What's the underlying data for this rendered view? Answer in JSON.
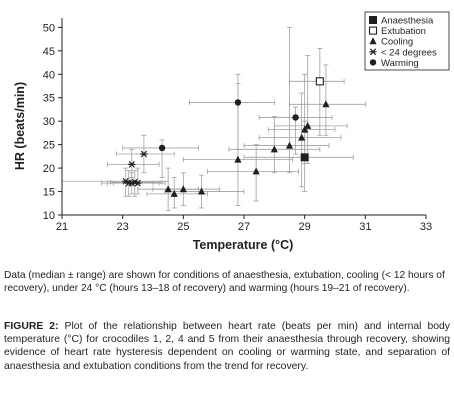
{
  "chart_data": {
    "type": "scatter",
    "xlabel": "Temperature (°C)",
    "ylabel": "HR (beats/min)",
    "xlim": [
      21,
      33
    ],
    "ylim": [
      10,
      52
    ],
    "xticks": [
      21,
      23,
      25,
      27,
      29,
      31,
      33
    ],
    "yticks": [
      10,
      15,
      20,
      25,
      30,
      35,
      40,
      45,
      50
    ],
    "grid": false,
    "legend_position": "top-right",
    "error_bars": "range",
    "series": [
      {
        "name": "Anaesthesia",
        "marker": "filled-square",
        "points": [
          {
            "x": 29.0,
            "y": 22.3,
            "xmin": 27.0,
            "xmax": 30.6,
            "ymin": 15.0,
            "ymax": 30.0
          }
        ]
      },
      {
        "name": "Extubation",
        "marker": "open-square",
        "points": [
          {
            "x": 29.5,
            "y": 38.5,
            "xmin": 28.5,
            "xmax": 30.3,
            "ymin": 27.0,
            "ymax": 45.5
          }
        ]
      },
      {
        "name": "Cooling",
        "marker": "filled-triangle",
        "points": [
          {
            "x": 24.5,
            "y": 15.5,
            "xmin": 23.5,
            "xmax": 25.5,
            "ymin": 11.0,
            "ymax": 20.0
          },
          {
            "x": 24.7,
            "y": 14.5,
            "xmin": 23.8,
            "xmax": 25.8,
            "ymin": 11.5,
            "ymax": 18.0
          },
          {
            "x": 25.0,
            "y": 15.5,
            "xmin": 24.0,
            "xmax": 26.2,
            "ymin": 12.0,
            "ymax": 19.0
          },
          {
            "x": 25.6,
            "y": 15.0,
            "xmin": 24.4,
            "xmax": 27.0,
            "ymin": 11.5,
            "ymax": 18.5
          },
          {
            "x": 26.8,
            "y": 21.8,
            "xmin": 25.0,
            "xmax": 28.6,
            "ymin": 12.0,
            "ymax": 38.0
          },
          {
            "x": 27.4,
            "y": 19.3,
            "xmin": 25.8,
            "xmax": 28.8,
            "ymin": 13.0,
            "ymax": 25.0
          },
          {
            "x": 28.0,
            "y": 24.0,
            "xmin": 26.5,
            "xmax": 29.5,
            "ymin": 19.0,
            "ymax": 31.0
          },
          {
            "x": 28.5,
            "y": 24.8,
            "xmin": 27.0,
            "xmax": 29.8,
            "ymin": 19.0,
            "ymax": 50.0
          },
          {
            "x": 28.9,
            "y": 26.5,
            "xmin": 27.5,
            "xmax": 30.2,
            "ymin": 16.0,
            "ymax": 36.0
          },
          {
            "x": 29.0,
            "y": 28.2,
            "xmin": 27.8,
            "xmax": 30.0,
            "ymin": 21.0,
            "ymax": 40.0
          },
          {
            "x": 29.1,
            "y": 29.0,
            "xmin": 28.0,
            "xmax": 30.4,
            "ymin": 21.0,
            "ymax": 44.0
          },
          {
            "x": 29.7,
            "y": 33.6,
            "xmin": 28.5,
            "xmax": 31.0,
            "ymin": 27.0,
            "ymax": 42.0
          }
        ]
      },
      {
        "name": "< 24 degrees",
        "marker": "asterisk",
        "points": [
          {
            "x": 23.1,
            "y": 17.2,
            "xmin": 21.0,
            "xmax": 24.5,
            "ymin": 14.0,
            "ymax": 20.0
          },
          {
            "x": 23.2,
            "y": 16.8,
            "xmin": 22.3,
            "xmax": 24.2,
            "ymin": 14.0,
            "ymax": 19.5
          },
          {
            "x": 23.3,
            "y": 16.8,
            "xmin": 22.5,
            "xmax": 24.0,
            "ymin": 14.5,
            "ymax": 19.0
          },
          {
            "x": 23.4,
            "y": 17.0,
            "xmin": 22.6,
            "xmax": 24.3,
            "ymin": 14.0,
            "ymax": 19.5
          },
          {
            "x": 23.5,
            "y": 16.8,
            "xmin": 22.7,
            "xmax": 24.4,
            "ymin": 14.5,
            "ymax": 20.0
          },
          {
            "x": 23.3,
            "y": 20.8,
            "xmin": 22.5,
            "xmax": 24.2,
            "ymin": 18.0,
            "ymax": 24.0
          },
          {
            "x": 23.7,
            "y": 23.0,
            "xmin": 22.8,
            "xmax": 24.7,
            "ymin": 19.0,
            "ymax": 27.0
          }
        ]
      },
      {
        "name": "Warming",
        "marker": "filled-circle",
        "points": [
          {
            "x": 24.3,
            "y": 24.3,
            "xmin": 23.0,
            "xmax": 25.5,
            "ymin": 18.0,
            "ymax": 26.0
          },
          {
            "x": 26.8,
            "y": 34.0,
            "xmin": 25.2,
            "xmax": 28.0,
            "ymin": 24.0,
            "ymax": 40.0
          },
          {
            "x": 28.7,
            "y": 30.8,
            "xmin": 27.5,
            "xmax": 29.9,
            "ymin": 23.0,
            "ymax": 33.0
          }
        ]
      }
    ]
  },
  "note": "Data (median ± range) are shown for conditions of anaesthesia, extubation, cooling (< 12 hours of recovery), under 24 °C (hours 13–18 of recovery) and warming (hours 19–21 of recovery).",
  "caption": {
    "label": "FIGURE 2:",
    "text": " Plot of the relationship between heart rate (beats per min) and internal body temperature (°C) for crocodiles 1, 2, 4 and 5 from their anaesthesia through recovery, showing evidence of heart rate hysteresis dependent on cooling or warming state, and separation of anaesthesia and extubation conditions from the trend for recovery."
  }
}
